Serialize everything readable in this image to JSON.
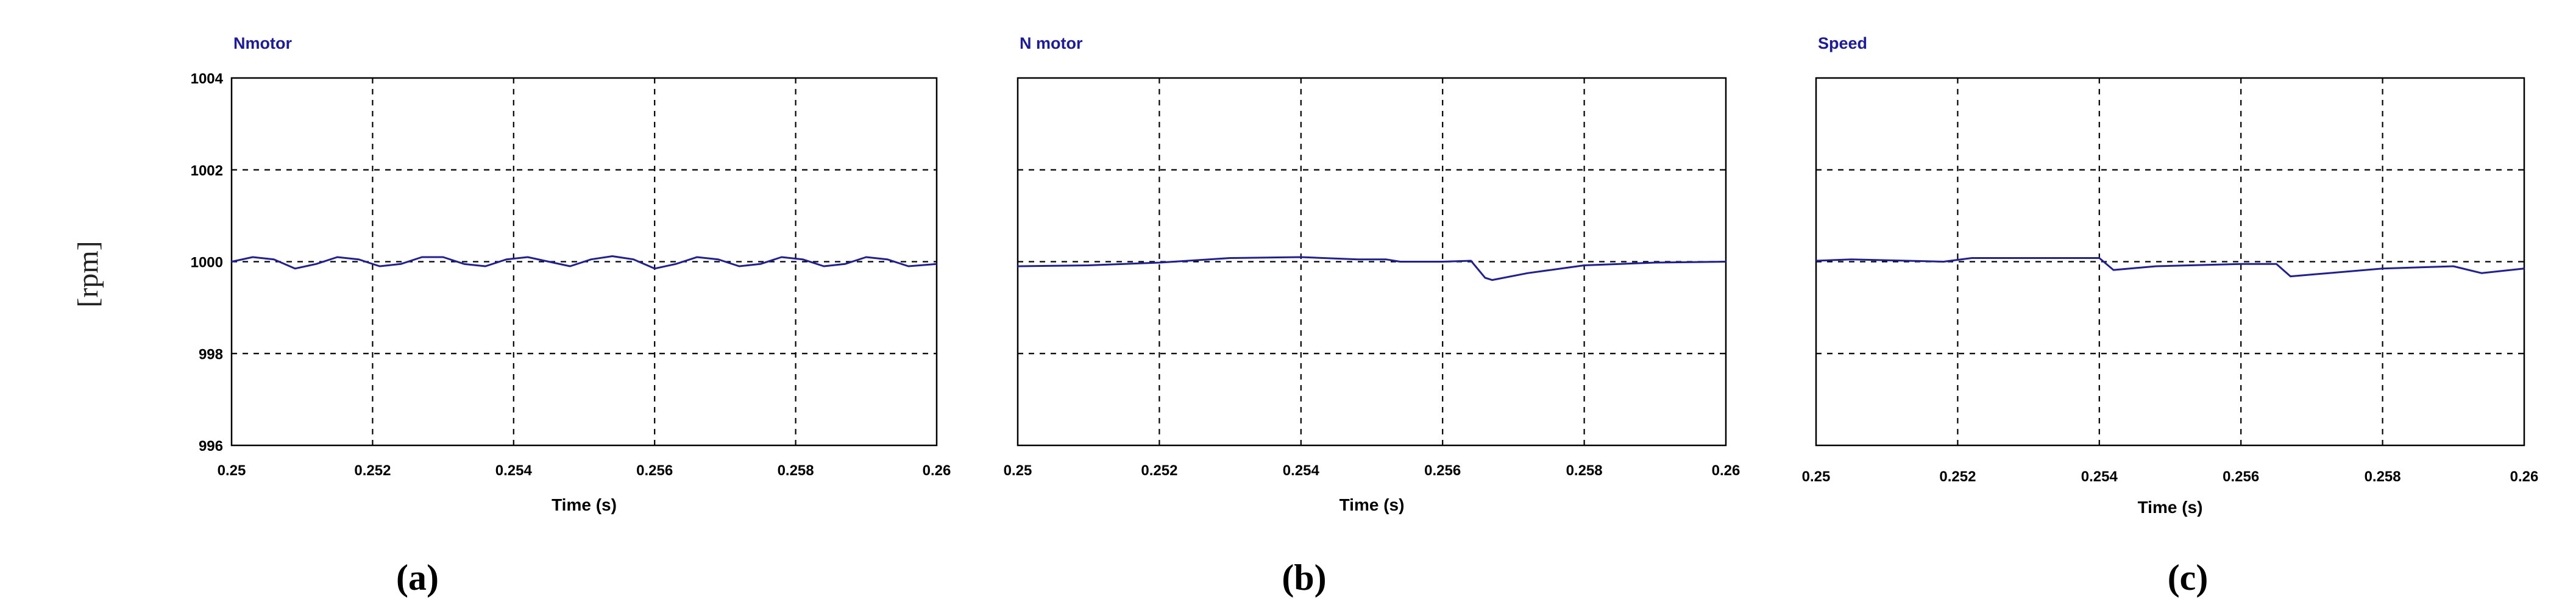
{
  "y_label": "[rpm]",
  "chart_data": [
    {
      "type": "line",
      "title": "Nmotor",
      "subfigure": "(a)",
      "xlabel": "Time (s)",
      "x_ticks": [
        "0.25",
        "0.252",
        "0.254",
        "0.256",
        "0.258",
        "0.26"
      ],
      "y_ticks": [
        "996",
        "998",
        "1000",
        "1002",
        "1004"
      ],
      "xlim": [
        0.25,
        0.26
      ],
      "ylim": [
        996,
        1004
      ],
      "grid": true,
      "color": "#1e1ea0",
      "series": [
        {
          "x": [
            0.25,
            0.2503,
            0.2506,
            0.2509,
            0.2512,
            0.2515,
            0.2518,
            0.2521,
            0.2524,
            0.2527,
            0.253,
            0.2533,
            0.2536,
            0.2539,
            0.2542,
            0.2545,
            0.2548,
            0.2551,
            0.2554,
            0.2557,
            0.256,
            0.2563,
            0.2566,
            0.2569,
            0.2572,
            0.2575,
            0.2578,
            0.2581,
            0.2584,
            0.2587,
            0.259,
            0.2593,
            0.2596,
            0.26
          ],
          "y": [
            1000.0,
            1000.1,
            1000.05,
            999.85,
            999.95,
            1000.1,
            1000.05,
            999.9,
            999.95,
            1000.1,
            1000.1,
            999.95,
            999.9,
            1000.05,
            1000.1,
            1000.0,
            999.9,
            1000.05,
            1000.12,
            1000.05,
            999.85,
            999.95,
            1000.1,
            1000.05,
            999.9,
            999.95,
            1000.1,
            1000.05,
            999.9,
            999.95,
            1000.1,
            1000.05,
            999.9,
            999.95
          ]
        }
      ]
    },
    {
      "type": "line",
      "title": "N motor",
      "subfigure": "(b)",
      "xlabel": "Time (s)",
      "x_ticks": [
        "0.25",
        "0.252",
        "0.254",
        "0.256",
        "0.258",
        "0.26"
      ],
      "xlim": [
        0.25,
        0.26
      ],
      "ylim": [
        996,
        1004
      ],
      "grid": true,
      "color": "#1e1ea0",
      "series": [
        {
          "x": [
            0.25,
            0.251,
            0.252,
            0.253,
            0.254,
            0.2548,
            0.2552,
            0.2554,
            0.256,
            0.2564,
            0.2566,
            0.2567,
            0.2572,
            0.258,
            0.259,
            0.26
          ],
          "y": [
            999.9,
            999.92,
            999.98,
            1000.08,
            1000.1,
            1000.05,
            1000.05,
            1000.0,
            1000.0,
            1000.02,
            999.65,
            999.6,
            999.75,
            999.92,
            999.98,
            1000.0
          ]
        }
      ]
    },
    {
      "type": "line",
      "title": "Speed",
      "subfigure": "(c)",
      "xlabel": "Time (s)",
      "x_ticks": [
        "0.25",
        "0.252",
        "0.254",
        "0.256",
        "0.258",
        "0.26"
      ],
      "xlim": [
        0.25,
        0.26
      ],
      "ylim": [
        996,
        1004
      ],
      "grid": true,
      "color": "#1e1ea0",
      "series": [
        {
          "x": [
            0.25,
            0.2505,
            0.2518,
            0.2522,
            0.254,
            0.2542,
            0.2548,
            0.256,
            0.2565,
            0.2567,
            0.257,
            0.258,
            0.259,
            0.2594,
            0.26
          ],
          "y": [
            1000.02,
            1000.05,
            1000.0,
            1000.08,
            1000.08,
            999.82,
            999.9,
            999.95,
            999.95,
            999.68,
            999.72,
            999.85,
            999.9,
            999.75,
            999.85
          ]
        }
      ]
    }
  ]
}
